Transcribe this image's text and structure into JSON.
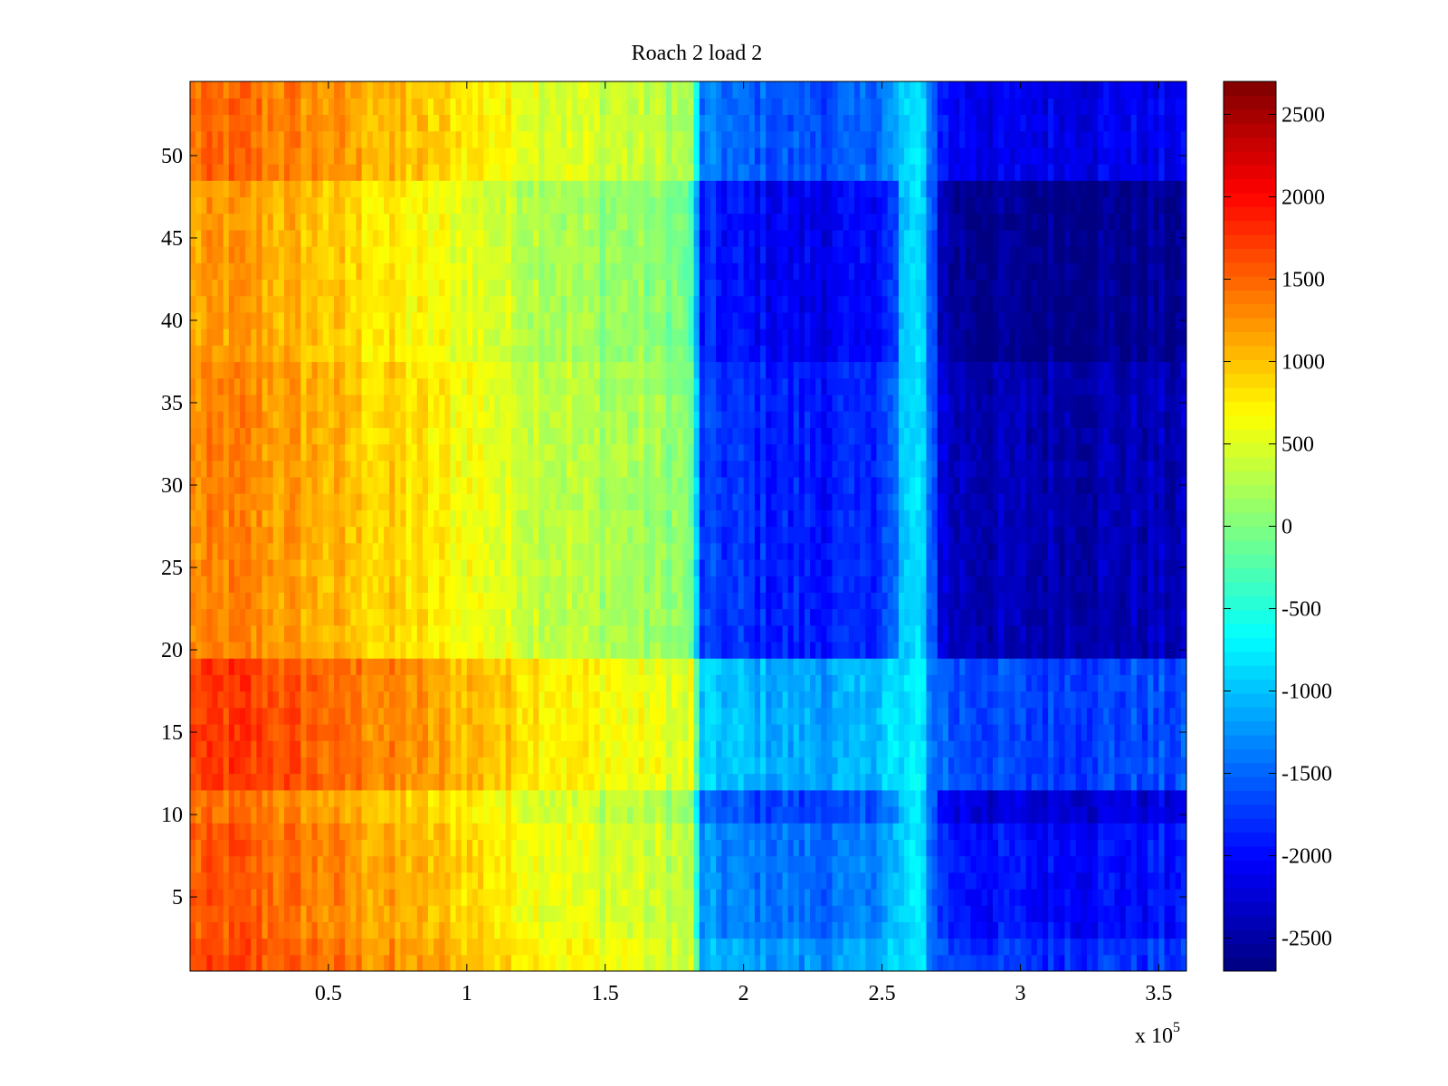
{
  "chart_data": {
    "type": "heatmap",
    "title": "Roach 2 load 2",
    "xlabel": "",
    "ylabel": "",
    "x_exponent_label": "x 10",
    "x_exponent_power": "5",
    "xlim": [
      0,
      3.6
    ],
    "ylim": [
      0.5,
      54.5
    ],
    "x_ticks": [
      0.5,
      1,
      1.5,
      2,
      2.5,
      3,
      3.5
    ],
    "x_tick_labels": [
      "0.5",
      "1",
      "1.5",
      "2",
      "2.5",
      "3",
      "3.5"
    ],
    "y_ticks": [
      5,
      10,
      15,
      20,
      25,
      30,
      35,
      40,
      45,
      50
    ],
    "y_tick_labels": [
      "5",
      "10",
      "15",
      "20",
      "25",
      "30",
      "35",
      "40",
      "45",
      "50"
    ],
    "rows": 54,
    "colorbar": {
      "colormap": "jet",
      "clim": [
        -2700,
        2700
      ],
      "ticks": [
        2500,
        2000,
        1500,
        1000,
        500,
        0,
        -500,
        -1000,
        -1500,
        -2000,
        -2500
      ],
      "tick_labels": [
        "2500",
        "2000",
        "1500",
        "1000",
        "500",
        "0",
        "-500",
        "-1000",
        "-1500",
        "-2000",
        "-2500"
      ]
    },
    "x_profile": {
      "x": [
        0,
        0.2,
        0.5,
        0.8,
        1.0,
        1.2,
        1.4,
        1.6,
        1.75,
        1.81,
        1.85,
        2.0,
        2.2,
        2.4,
        2.55,
        2.6,
        2.65,
        2.68,
        2.75,
        3.0,
        3.3,
        3.6
      ],
      "values": [
        1500,
        1550,
        1300,
        1050,
        900,
        700,
        550,
        450,
        350,
        250,
        -1250,
        -1350,
        -1450,
        -1450,
        -1100,
        -800,
        -900,
        -1500,
        -1900,
        -2000,
        -1950,
        -1950
      ]
    },
    "row_bands": [
      {
        "rows": [
          1,
          2
        ],
        "delta": 200
      },
      {
        "rows": [
          3,
          9
        ],
        "delta": 0
      },
      {
        "rows": [
          10,
          11
        ],
        "delta": -250
      },
      {
        "rows": [
          12,
          19
        ],
        "delta": 300
      },
      {
        "rows": [
          20,
          37
        ],
        "delta": -450
      },
      {
        "rows": [
          38,
          48
        ],
        "delta": -650
      },
      {
        "rows": [
          49,
          54
        ],
        "delta": -150
      }
    ]
  }
}
